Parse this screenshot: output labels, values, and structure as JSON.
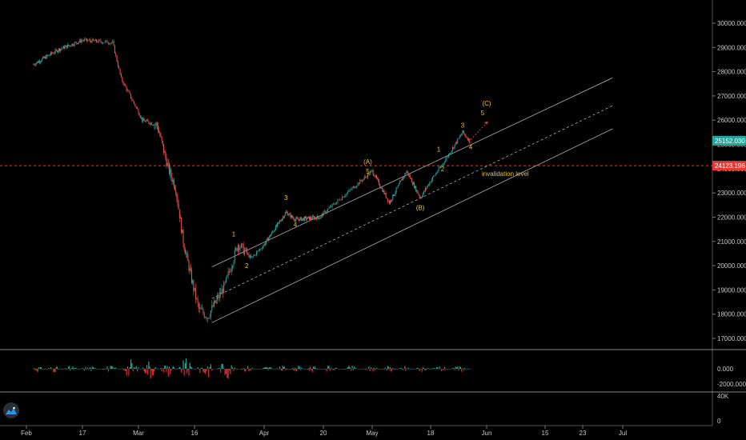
{
  "chart_data": {
    "type": "candlestick",
    "price_axis": {
      "ticks": [
        "30000.000",
        "29000.000",
        "28000.000",
        "27000.000",
        "26000.000",
        "25000.000",
        "24000.000",
        "23000.000",
        "22000.000",
        "21000.000",
        "20000.000",
        "19000.000",
        "18000.000",
        "17000.000"
      ],
      "tick_values": [
        30000,
        29000,
        28000,
        27000,
        26000,
        25000,
        24000,
        23000,
        22000,
        21000,
        20000,
        19000,
        18000,
        17000
      ],
      "range": [
        16600,
        30600
      ]
    },
    "last_price": {
      "label": "25152.030",
      "value": 25152.03,
      "color": "#26a69a"
    },
    "invalidation_price": {
      "label": "24123.196",
      "value": 24123.196,
      "color": "#e53935"
    },
    "x_axis": {
      "labels": [
        "Feb",
        "17",
        "Mar",
        "16",
        "Apr",
        "20",
        "May",
        "18",
        "Jun",
        "15",
        "23",
        "Jul"
      ]
    },
    "price_series_key_points": [
      {
        "x": "Feb 3",
        "y": 28300
      },
      {
        "x": "Feb 10",
        "y": 28900
      },
      {
        "x": "Feb 17",
        "y": 29300
      },
      {
        "x": "Feb 24",
        "y": 29200
      },
      {
        "x": "Feb 26",
        "y": 27700
      },
      {
        "x": "Mar 2",
        "y": 26000
      },
      {
        "x": "Mar 6",
        "y": 25800
      },
      {
        "x": "Mar 9",
        "y": 24000
      },
      {
        "x": "Mar 11",
        "y": 23200
      },
      {
        "x": "Mar 13",
        "y": 21000
      },
      {
        "x": "Mar 17",
        "y": 18200
      },
      {
        "x": "Mar 19",
        "y": 17900
      },
      {
        "x": "Mar 23",
        "y": 19200
      },
      {
        "x": "Mar 26",
        "y": 20900
      },
      {
        "x": "Mar 29",
        "y": 20300
      },
      {
        "x": "Apr 8",
        "y": 22200
      },
      {
        "x": "Apr 11",
        "y": 21900
      },
      {
        "x": "Apr 19",
        "y": 22000
      },
      {
        "x": "May 1",
        "y": 23900
      },
      {
        "x": "May 6",
        "y": 22600
      },
      {
        "x": "May 11",
        "y": 23900
      },
      {
        "x": "May 15",
        "y": 22800
      },
      {
        "x": "May 21",
        "y": 24200
      },
      {
        "x": "May 26",
        "y": 25500
      },
      {
        "x": "May 28",
        "y": 25100
      }
    ],
    "wave_labels": [
      {
        "text": "1",
        "x": "Mar 25",
        "y": 21200,
        "color": "#f0c419"
      },
      {
        "text": "2",
        "x": "Mar 28",
        "y": 19900,
        "color": "#f0c419"
      },
      {
        "text": "3",
        "x": "Apr 8",
        "y": 22700,
        "color": "#f0c419"
      },
      {
        "text": "4",
        "x": "Apr 11",
        "y": 21600,
        "color": "#f0c419"
      },
      {
        "text": "(A)",
        "x": "Apr 30",
        "y": 24200,
        "color": "#e8912a"
      },
      {
        "text": "5",
        "x": "Apr 30",
        "y": 23800,
        "color": "#f0c419"
      },
      {
        "text": "(B)",
        "x": "May 15",
        "y": 22300,
        "color": "#e8912a"
      },
      {
        "text": "1",
        "x": "May 20",
        "y": 24700,
        "color": "#f0c419"
      },
      {
        "text": "2",
        "x": "May 21",
        "y": 23900,
        "color": "#f0c419"
      },
      {
        "text": "3",
        "x": "May 26",
        "y": 25700,
        "color": "#f0c419"
      },
      {
        "text": "4",
        "x": "May 28",
        "y": 24800,
        "color": "#f0c419"
      },
      {
        "text": "5",
        "x": "May 31",
        "y": 26200,
        "color": "#f0c419"
      },
      {
        "text": "(C)",
        "x": "Jun 1",
        "y": 26600,
        "color": "#e8912a"
      }
    ],
    "annotations": [
      {
        "text": "invalidation level",
        "x": "Jun 1",
        "y": 23700,
        "color": "#f0c419"
      }
    ],
    "indicator_pane": {
      "ticks": [
        "0.000",
        "-2000.000"
      ],
      "tick_values": [
        0,
        -2000
      ]
    },
    "volume_pane": {
      "ticks": [
        "40K",
        "0"
      ],
      "tick_values": [
        40000,
        0
      ]
    },
    "colors": {
      "up": "#26a69a",
      "down": "#ef5350",
      "osc_up": "#26a69a",
      "osc_down": "#d32f2f",
      "channel": "#b0b0b0"
    }
  }
}
